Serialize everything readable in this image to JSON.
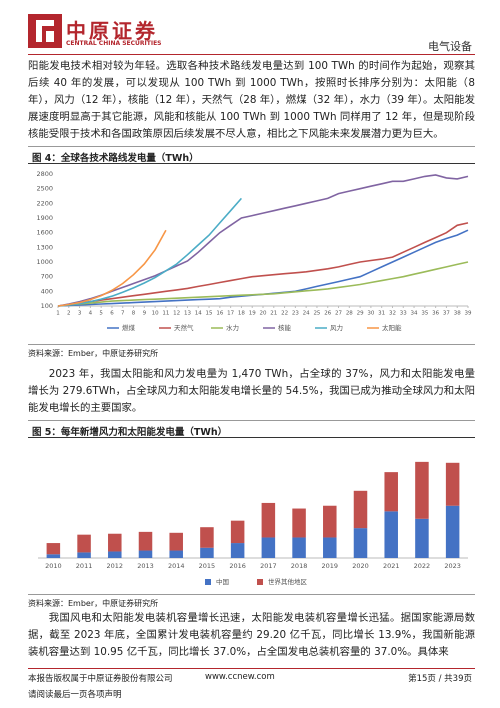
{
  "header": {
    "logo_cn": "中原证券",
    "logo_en": "CENTRAL CHINA SECURITIES",
    "section": "电气设备"
  },
  "paragraphs": [
    "阳能发电技术相对较为年轻。选取各种技术路线发电量达到 100 TWh 的时间作为起始，观察其后续 40 年的发展，可以发现从 100 TWh 到 1000 TWh，按照时长排序分别为：太阳能（8 年），风力（12 年），核能（12 年），天然气（28 年），燃煤（32 年），水力（39 年）。太阳能发展速度明显高于其它能源，风能和核能从 100 TWh 到 1000 TWh 同样用了 12 年，但是现阶段核能受限于技术和各国政策原因后续发展不尽人意，相比之下风能未来发展潜力更为巨大。",
    "2023 年，我国太阳能和风力发电量为 1,470 TWh，占全球的 37%，风力和太阳能发电量增长为 279.6TWh，占全球风力和太阳能发电增长量的 54.5%，我国已成为推动全球风力和太阳能发电增长的主要国家。",
    "我国风电和太阳能发电装机容量增长迅速，太阳能发电装机容量增长迅猛。据国家能源局数据，截至 2023 年底，全国累计发电装机容量约 29.20 亿千瓦，同比增长 13.9%，我国新能源装机容量达到 10.95 亿千瓦，同比增长 37.0%，占全国发电总装机容量的 37.0%。具体来"
  ],
  "figures": [
    {
      "title": "图 4：全球各技术路线发电量（TWh）",
      "source": "资料来源：Ember，中原证券研究所",
      "chart_data": {
        "type": "line",
        "x": [
          1,
          2,
          3,
          4,
          5,
          6,
          7,
          8,
          9,
          10,
          11,
          12,
          13,
          14,
          15,
          16,
          17,
          18,
          19,
          20,
          21,
          22,
          23,
          24,
          25,
          26,
          27,
          28,
          29,
          30,
          31,
          32,
          33,
          34,
          35,
          36,
          37,
          38,
          39
        ],
        "xlim": [
          1,
          39
        ],
        "xticks": [
          1,
          2,
          3,
          4,
          5,
          6,
          7,
          8,
          9,
          10,
          11,
          12,
          13,
          14,
          15,
          16,
          17,
          18,
          19,
          20,
          21,
          22,
          23,
          24,
          25,
          26,
          27,
          28,
          29,
          30,
          31,
          32,
          33,
          34,
          35,
          36,
          37,
          38,
          39
        ],
        "ylim": [
          100,
          2800
        ],
        "yticks": [
          100,
          400,
          700,
          1000,
          1300,
          1600,
          1900,
          2200,
          2500,
          2800
        ],
        "series": [
          {
            "name": "燃煤",
            "color": "#4472c4",
            "values": [
              100,
              110,
              120,
              130,
              140,
              150,
              160,
              170,
              180,
              190,
              200,
              210,
              220,
              230,
              240,
              250,
              280,
              300,
              320,
              340,
              360,
              380,
              400,
              450,
              500,
              550,
              600,
              650,
              700,
              800,
              900,
              1000,
              1100,
              1200,
              1300,
              1400,
              1480,
              1550,
              1650
            ]
          },
          {
            "name": "天然气",
            "color": "#c0504d",
            "values": [
              100,
              130,
              160,
              190,
              220,
              250,
              280,
              310,
              340,
              370,
              400,
              430,
              460,
              500,
              540,
              580,
              620,
              660,
              700,
              720,
              740,
              760,
              780,
              800,
              830,
              860,
              900,
              950,
              1000,
              1030,
              1060,
              1100,
              1200,
              1300,
              1400,
              1500,
              1600,
              1750,
              1800
            ]
          },
          {
            "name": "水力",
            "color": "#9bbb59",
            "values": [
              100,
              120,
              140,
              160,
              180,
              200,
              210,
              220,
              230,
              240,
              250,
              260,
              270,
              280,
              290,
              300,
              310,
              320,
              330,
              340,
              350,
              370,
              390,
              410,
              430,
              450,
              480,
              510,
              540,
              580,
              620,
              660,
              700,
              750,
              800,
              850,
              900,
              950,
              1000
            ]
          },
          {
            "name": "核能",
            "color": "#8064a2",
            "values": [
              100,
              140,
              190,
              250,
              320,
              400,
              480,
              560,
              640,
              720,
              820,
              920,
              1020,
              1200,
              1400,
              1600,
              1750,
              1900,
              1950,
              2000,
              2050,
              2100,
              2150,
              2200,
              2250,
              2300,
              2400,
              2450,
              2500,
              2550,
              2600,
              2650,
              2650,
              2700,
              2750,
              2780,
              2720,
              2700,
              2750
            ]
          },
          {
            "name": "风力",
            "color": "#4bacc6",
            "values": [
              100,
              120,
              150,
              190,
              240,
              300,
              380,
              470,
              570,
              680,
              820,
              960,
              1150,
              1350,
              1550,
              1800,
              2050,
              2300,
              null,
              null,
              null,
              null,
              null,
              null,
              null,
              null,
              null,
              null,
              null,
              null,
              null,
              null,
              null,
              null,
              null,
              null,
              null,
              null,
              null
            ]
          },
          {
            "name": "太阳能",
            "color": "#f79646",
            "values": [
              100,
              130,
              170,
              230,
              310,
              420,
              560,
              740,
              960,
              1250,
              1650,
              null,
              null,
              null,
              null,
              null,
              null,
              null,
              null,
              null,
              null,
              null,
              null,
              null,
              null,
              null,
              null,
              null,
              null,
              null,
              null,
              null,
              null,
              null,
              null,
              null,
              null,
              null,
              null
            ]
          }
        ]
      }
    },
    {
      "title": "图 5：每年新增风力和太阳能发电量（TWh）",
      "source": "资料来源：Ember，中原证券研究所",
      "chart_data": {
        "type": "stacked_bar",
        "categories": [
          "2010",
          "2011",
          "2012",
          "2013",
          "2014",
          "2015",
          "2016",
          "2017",
          "2018",
          "2019",
          "2020",
          "2021",
          "2022",
          "2023"
        ],
        "ylim": [
          0,
          600
        ],
        "series": [
          {
            "name": "中国",
            "color": "#4472c4",
            "values": [
              20,
              30,
              35,
              40,
              40,
              55,
              80,
              110,
              110,
              110,
              160,
              250,
              210,
              280
            ]
          },
          {
            "name": "世界其他地区",
            "color": "#c0504d",
            "values": [
              60,
              95,
              95,
              100,
              95,
              110,
              120,
              185,
              155,
              170,
              200,
              210,
              305,
              230
            ]
          }
        ]
      }
    }
  ],
  "footer": {
    "copyright": "本报告版权属于中原证券股份有限公司",
    "url": "www.ccnew.com",
    "page": "第15页 / 共39页",
    "notice": "请阅读最后一页各项声明"
  }
}
